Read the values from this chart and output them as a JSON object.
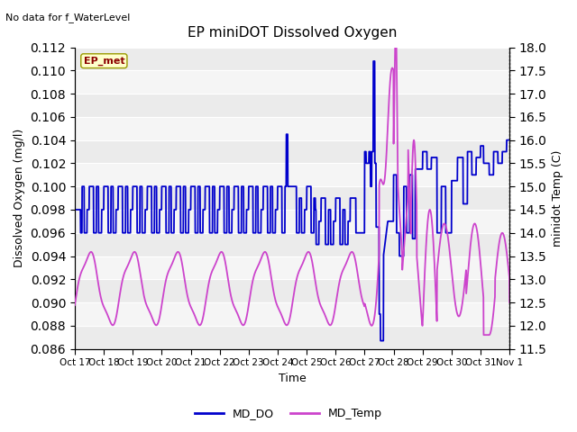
{
  "title": "EP miniDOT Dissolved Oxygen",
  "top_left_text": "No data for f_WaterLevel",
  "box_label": "EP_met",
  "xlabel": "Time",
  "ylabel_left": "Dissolved Oxygen (mg/l)",
  "ylabel_right": "minidot Temp (C)",
  "ylim_left": [
    0.086,
    0.112
  ],
  "ylim_right": [
    11.5,
    18.0
  ],
  "yticks_left": [
    0.086,
    0.088,
    0.09,
    0.092,
    0.094,
    0.096,
    0.098,
    0.1,
    0.102,
    0.104,
    0.106,
    0.108,
    0.11,
    0.112
  ],
  "yticks_right": [
    11.5,
    12.0,
    12.5,
    13.0,
    13.5,
    14.0,
    14.5,
    15.0,
    15.5,
    16.0,
    16.5,
    17.0,
    17.5,
    18.0
  ],
  "xtick_labels": [
    "Oct 17",
    "Oct 18",
    "Oct 19",
    "Oct 20",
    "Oct 21",
    "Oct 22",
    "Oct 23",
    "Oct 24",
    "Oct 25",
    "Oct 26",
    "Oct 27",
    "Oct 28",
    "Oct 29",
    "Oct 30",
    "Oct 31",
    "Nov 1"
  ],
  "color_do": "#0000cc",
  "color_temp": "#cc44cc",
  "legend_entries": [
    "MD_DO",
    "MD_Temp"
  ],
  "band_colors": [
    "#ebebeb",
    "#f5f5f5"
  ],
  "grid_color": "#ffffff"
}
